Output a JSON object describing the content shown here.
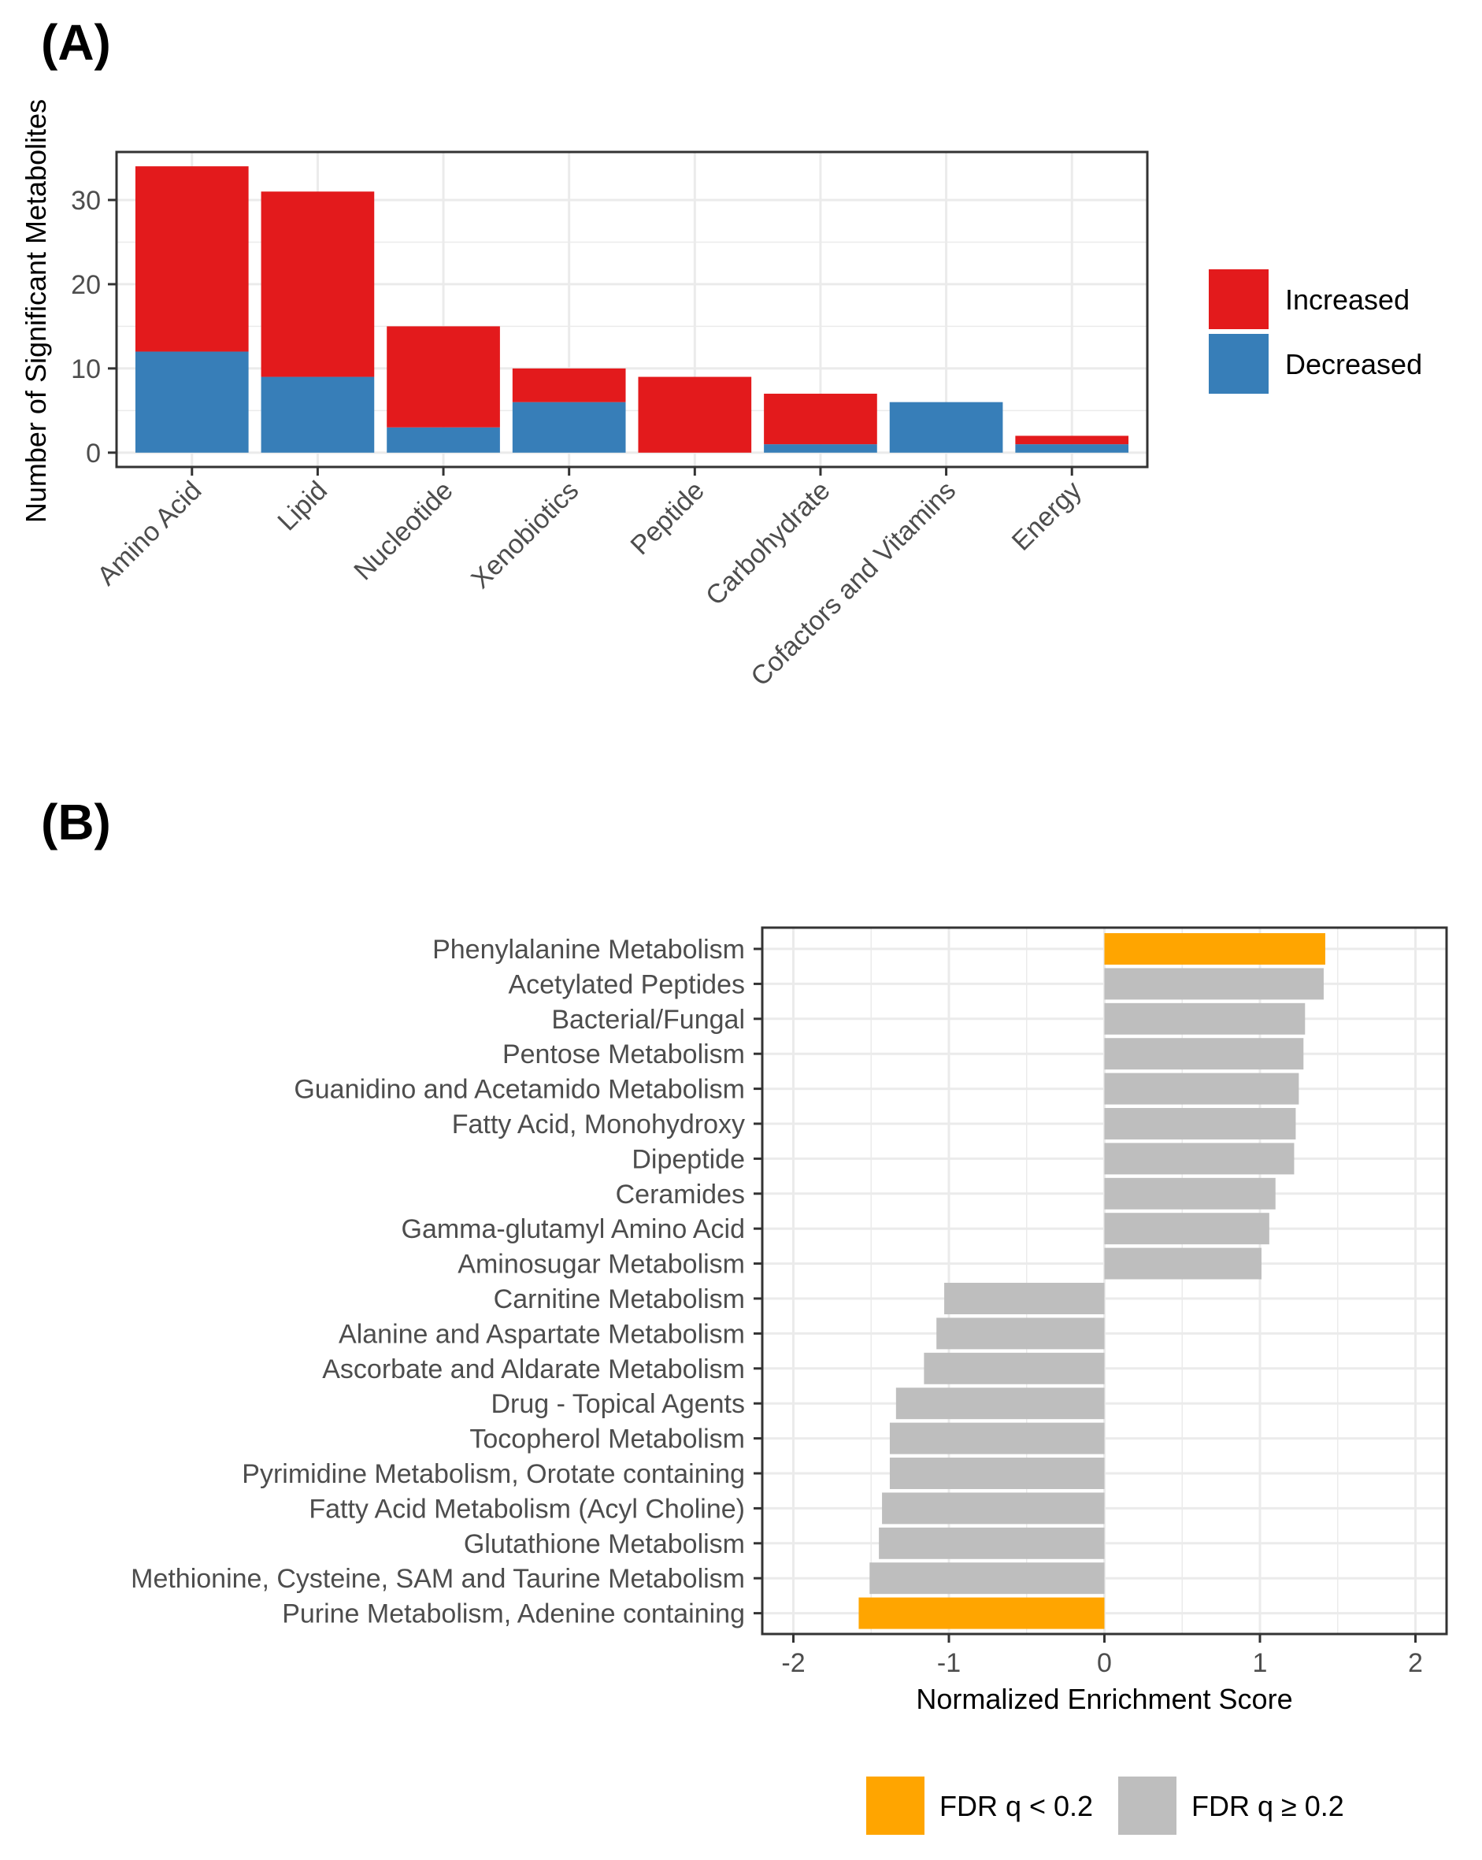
{
  "panel_labels": [
    "(A)",
    "(B)"
  ],
  "colors": {
    "increased": "#e31a1c",
    "decreased": "#377eb8",
    "fdr_significant": "#ffa500",
    "fdr_not_significant": "#bebebe",
    "grid": "#ebebeb",
    "panel_border": "#333333"
  },
  "chart_data": [
    {
      "type": "bar",
      "stacked": true,
      "panel": "(A)",
      "categories": [
        "Amino Acid",
        "Lipid",
        "Nucleotide",
        "Xenobiotics",
        "Peptide",
        "Carbohydrate",
        "Cofactors and Vitamins",
        "Energy"
      ],
      "series": [
        {
          "name": "Decreased",
          "color": "#377eb8",
          "values": [
            12,
            9,
            3,
            6,
            0,
            1,
            6,
            1
          ]
        },
        {
          "name": "Increased",
          "color": "#e31a1c",
          "values": [
            22,
            22,
            12,
            4,
            9,
            6,
            0,
            1
          ]
        }
      ],
      "xlabel": "",
      "ylabel": "Number of Significant Metabolites",
      "ylim": [
        0,
        34
      ],
      "yticks": [
        0,
        10,
        20,
        30
      ],
      "grid": true,
      "legend": {
        "placement": "right",
        "entries": [
          "Increased",
          "Decreased"
        ]
      }
    },
    {
      "type": "bar",
      "orientation": "horizontal",
      "panel": "(B)",
      "categories": [
        "Phenylalanine Metabolism",
        "Acetylated Peptides",
        "Bacterial/Fungal",
        "Pentose Metabolism",
        "Guanidino and Acetamido Metabolism",
        "Fatty Acid, Monohydroxy",
        "Dipeptide",
        "Ceramides",
        "Gamma-glutamyl Amino Acid",
        "Aminosugar Metabolism",
        "Carnitine Metabolism",
        "Alanine and Aspartate Metabolism",
        "Ascorbate and Aldarate Metabolism",
        "Drug - Topical Agents",
        "Tocopherol Metabolism",
        "Pyrimidine Metabolism, Orotate containing",
        "Fatty Acid Metabolism (Acyl Choline)",
        "Glutathione Metabolism",
        "Methionine, Cysteine, SAM and Taurine Metabolism",
        "Purine Metabolism, Adenine containing"
      ],
      "values": [
        1.42,
        1.41,
        1.29,
        1.28,
        1.25,
        1.23,
        1.22,
        1.1,
        1.06,
        1.01,
        -1.03,
        -1.08,
        -1.16,
        -1.34,
        -1.38,
        -1.38,
        -1.43,
        -1.45,
        -1.51,
        -1.58
      ],
      "significant": [
        true,
        false,
        false,
        false,
        false,
        false,
        false,
        false,
        false,
        false,
        false,
        false,
        false,
        false,
        false,
        false,
        false,
        false,
        false,
        true
      ],
      "xlabel": "Normalized Enrichment Score",
      "ylabel": "",
      "xlim": [
        -2.2,
        2.2
      ],
      "xticks": [
        -2,
        -1,
        0,
        1,
        2
      ],
      "grid": true,
      "legend": {
        "placement": "bottom",
        "entries": [
          "FDR q < 0.2",
          "FDR q ≥ 0.2"
        ]
      }
    }
  ]
}
